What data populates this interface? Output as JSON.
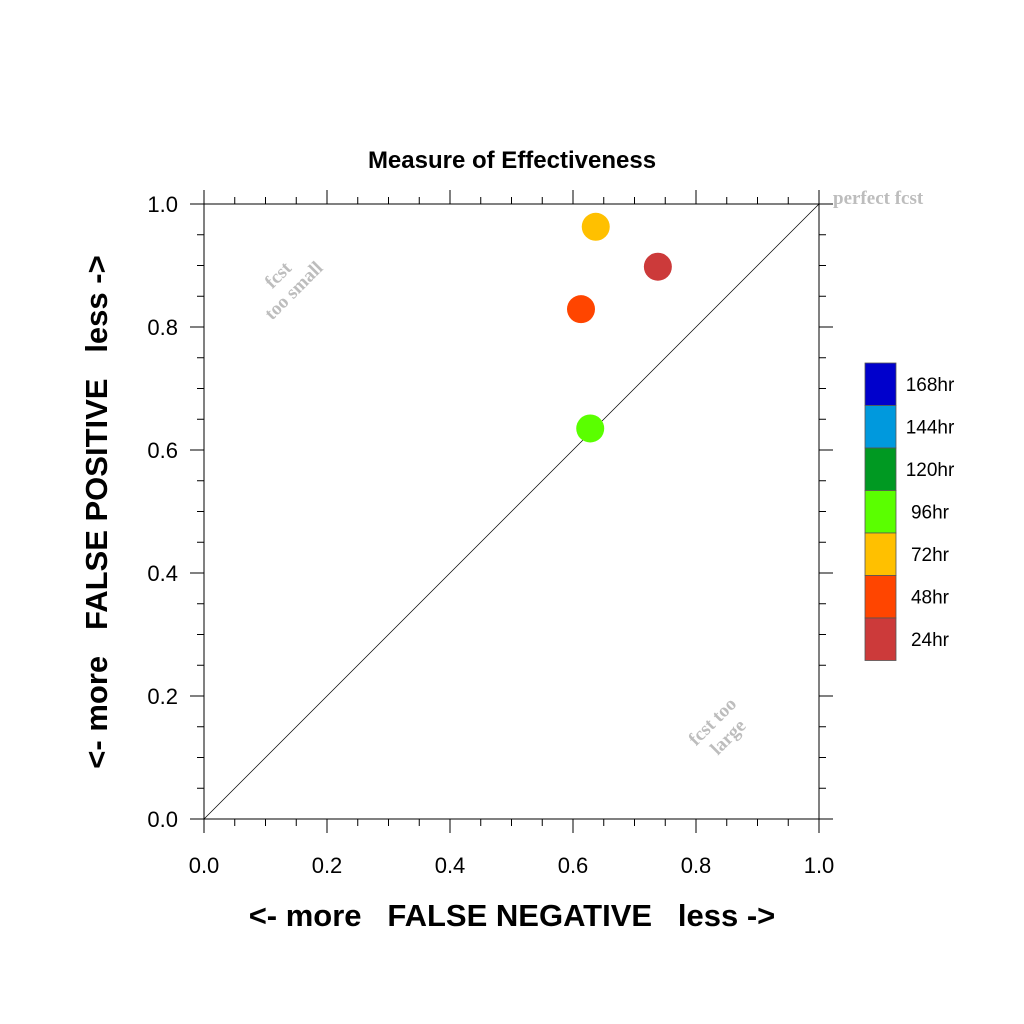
{
  "chart_data": {
    "type": "scatter",
    "title": "Measure of Effectiveness",
    "xlabel": "<- more   FALSE NEGATIVE   less ->",
    "ylabel": "<- more   FALSE POSITIVE   less ->",
    "xlim": [
      0.0,
      1.0
    ],
    "ylim": [
      0.0,
      1.0
    ],
    "xticks": [
      "0.0",
      "0.2",
      "0.4",
      "0.6",
      "0.8",
      "1.0"
    ],
    "yticks": [
      "0.0",
      "0.2",
      "0.4",
      "0.6",
      "0.8",
      "1.0"
    ],
    "grid": false,
    "reference_line": {
      "from": [
        0,
        0
      ],
      "to": [
        1,
        1
      ]
    },
    "annotations": {
      "perfect": "perfect fcst",
      "small_line1": "fcst",
      "small_line2": "too small",
      "large_line1": "fcst too",
      "large_line2": "large"
    },
    "points": [
      {
        "name": "24hr",
        "x": 0.738,
        "y": 0.898,
        "color": "#cc3a3a"
      },
      {
        "name": "48hr",
        "x": 0.613,
        "y": 0.829,
        "color": "#ff4500"
      },
      {
        "name": "72hr",
        "x": 0.637,
        "y": 0.963,
        "color": "#ffc000"
      },
      {
        "name": "96hr",
        "x": 0.628,
        "y": 0.635,
        "color": "#5aff00"
      }
    ],
    "legend": {
      "placement": "right",
      "entries": [
        {
          "label": "168hr",
          "color": "#0000cc"
        },
        {
          "label": "144hr",
          "color": "#0099dd"
        },
        {
          "label": "120hr",
          "color": "#009922"
        },
        {
          "label": "96hr",
          "color": "#5aff00"
        },
        {
          "label": "72hr",
          "color": "#ffc000"
        },
        {
          "label": "48hr",
          "color": "#ff4500"
        },
        {
          "label": "24hr",
          "color": "#cc3a3a"
        }
      ]
    }
  }
}
